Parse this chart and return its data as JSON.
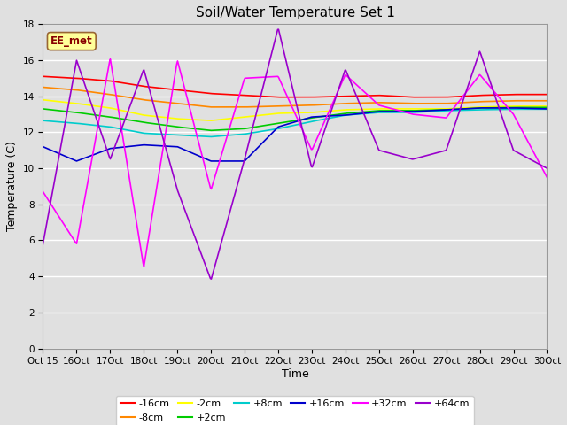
{
  "title": "Soil/Water Temperature Set 1",
  "xlabel": "Time",
  "ylabel": "Temperature (C)",
  "annotation": "EE_met",
  "ylim": [
    0,
    18
  ],
  "x_tick_labels": [
    "Oct 15",
    "Oct 16",
    "Oct 17",
    "Oct 18",
    "Oct 19",
    "Oct 20",
    "Oct 21",
    "Oct 22",
    "Oct 23",
    "Oct 24",
    "Oct 25",
    "Oct 26",
    "Oct 27",
    "Oct 28",
    "Oct 29",
    "Oct 30"
  ],
  "series": {
    "-16cm": {
      "color": "#FF0000",
      "lw": 1.2,
      "y": [
        15.1,
        15.0,
        14.85,
        14.55,
        14.35,
        14.15,
        14.05,
        13.95,
        13.95,
        14.0,
        14.05,
        13.95,
        13.95,
        14.05,
        14.1,
        14.1
      ]
    },
    "-8cm": {
      "color": "#FF8800",
      "lw": 1.2,
      "y": [
        14.5,
        14.35,
        14.1,
        13.8,
        13.6,
        13.4,
        13.4,
        13.45,
        13.5,
        13.6,
        13.65,
        13.6,
        13.6,
        13.7,
        13.75,
        13.75
      ]
    },
    "-2cm": {
      "color": "#FFFF00",
      "lw": 1.2,
      "y": [
        13.8,
        13.6,
        13.35,
        12.95,
        12.75,
        12.65,
        12.85,
        13.05,
        13.1,
        13.25,
        13.3,
        13.3,
        13.3,
        13.4,
        13.45,
        13.45
      ]
    },
    "+2cm": {
      "color": "#00CC00",
      "lw": 1.2,
      "y": [
        13.3,
        13.1,
        12.85,
        12.55,
        12.3,
        12.1,
        12.2,
        12.5,
        12.8,
        13.05,
        13.2,
        13.2,
        13.25,
        13.35,
        13.38,
        13.38
      ]
    },
    "+8cm": {
      "color": "#00CCCC",
      "lw": 1.2,
      "y": [
        12.65,
        12.5,
        12.3,
        11.95,
        11.85,
        11.75,
        11.9,
        12.2,
        12.6,
        12.95,
        13.1,
        13.1,
        13.2,
        13.25,
        13.28,
        13.28
      ]
    },
    "+16cm": {
      "color": "#0000CC",
      "lw": 1.2,
      "y": [
        11.2,
        10.4,
        11.1,
        11.3,
        11.2,
        10.4,
        10.4,
        12.3,
        12.85,
        12.95,
        13.15,
        13.15,
        13.25,
        13.35,
        13.35,
        13.3
      ]
    },
    "+32cm": {
      "color": "#FF00FF",
      "lw": 1.2,
      "y": [
        8.7,
        5.8,
        16.1,
        4.5,
        16.0,
        8.8,
        15.0,
        15.1,
        11.0,
        15.2,
        13.5,
        13.0,
        12.8,
        15.2,
        13.0,
        9.5
      ]
    },
    "+64cm": {
      "color": "#9900CC",
      "lw": 1.2,
      "y": [
        5.8,
        16.0,
        10.5,
        15.5,
        8.8,
        3.8,
        10.5,
        17.8,
        10.0,
        15.5,
        11.0,
        10.5,
        11.0,
        16.5,
        11.0,
        10.0
      ]
    }
  },
  "background_color": "#E0E0E0",
  "plot_bg_color": "#E0E0E0",
  "grid_color": "#FFFFFF",
  "annotation_bg": "#FFFF99",
  "annotation_border": "#996633",
  "annotation_color": "#880000"
}
